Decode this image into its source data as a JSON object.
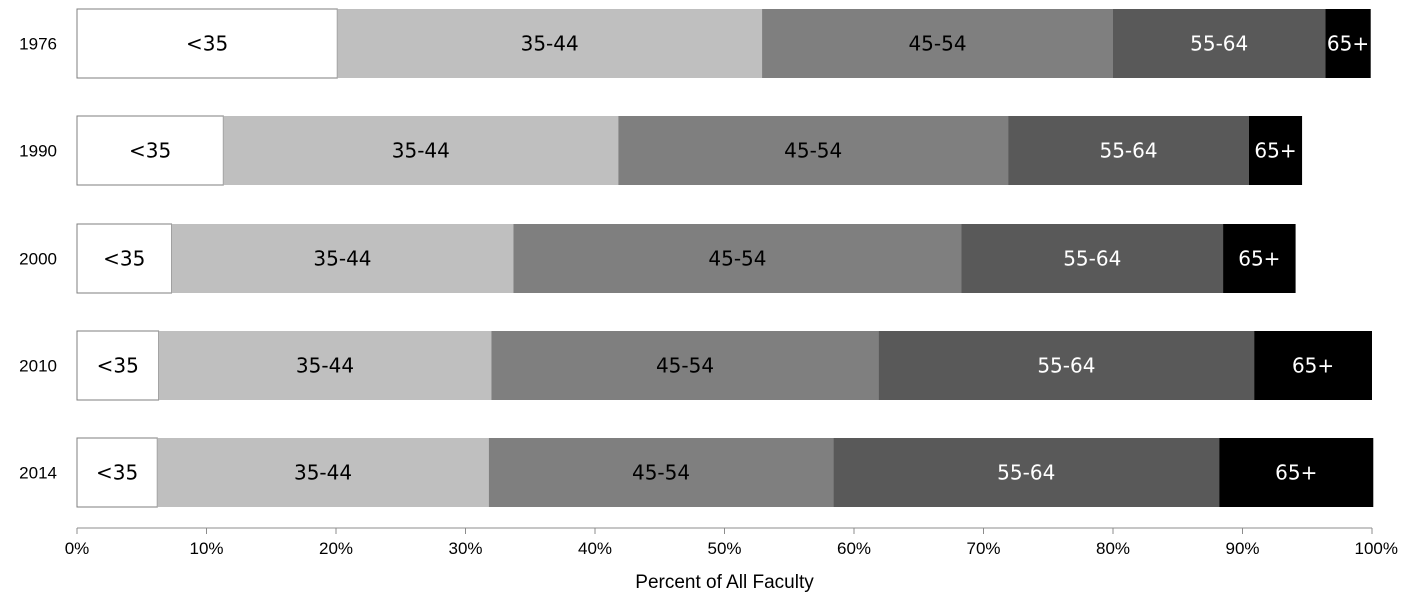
{
  "chart_data": {
    "type": "bar",
    "orientation": "horizontal",
    "stacked": "percent",
    "title": "",
    "xlabel": "Percent of All Faculty",
    "ylabel": "",
    "xlim": [
      0,
      100
    ],
    "x_ticks": [
      "0%",
      "10%",
      "20%",
      "30%",
      "40%",
      "50%",
      "60%",
      "70%",
      "80%",
      "90%",
      "100%"
    ],
    "grid": false,
    "legend": "none",
    "categories": [
      "1976",
      "1990",
      "2000",
      "2010",
      "2014"
    ],
    "series": [
      {
        "label": "<35",
        "color": "#ffffff",
        "text_color": "#000000",
        "values": [
          20.1,
          11.3,
          7.3,
          6.3,
          6.2
        ]
      },
      {
        "label": "35-44",
        "color": "#bfbfbf",
        "text_color": "#000000",
        "values": [
          32.8,
          30.5,
          26.4,
          25.7,
          25.6
        ]
      },
      {
        "label": "45-54",
        "color": "#7f7f7f",
        "text_color": "#000000",
        "values": [
          27.1,
          30.1,
          34.6,
          29.9,
          26.6
        ]
      },
      {
        "label": "55-64",
        "color": "#595959",
        "text_color": "#ffffff",
        "values": [
          16.4,
          18.6,
          20.2,
          29.0,
          29.8
        ]
      },
      {
        "label": "65+",
        "color": "#000000",
        "text_color": "#ffffff",
        "values": [
          3.5,
          4.1,
          5.6,
          9.1,
          11.9
        ]
      }
    ]
  }
}
